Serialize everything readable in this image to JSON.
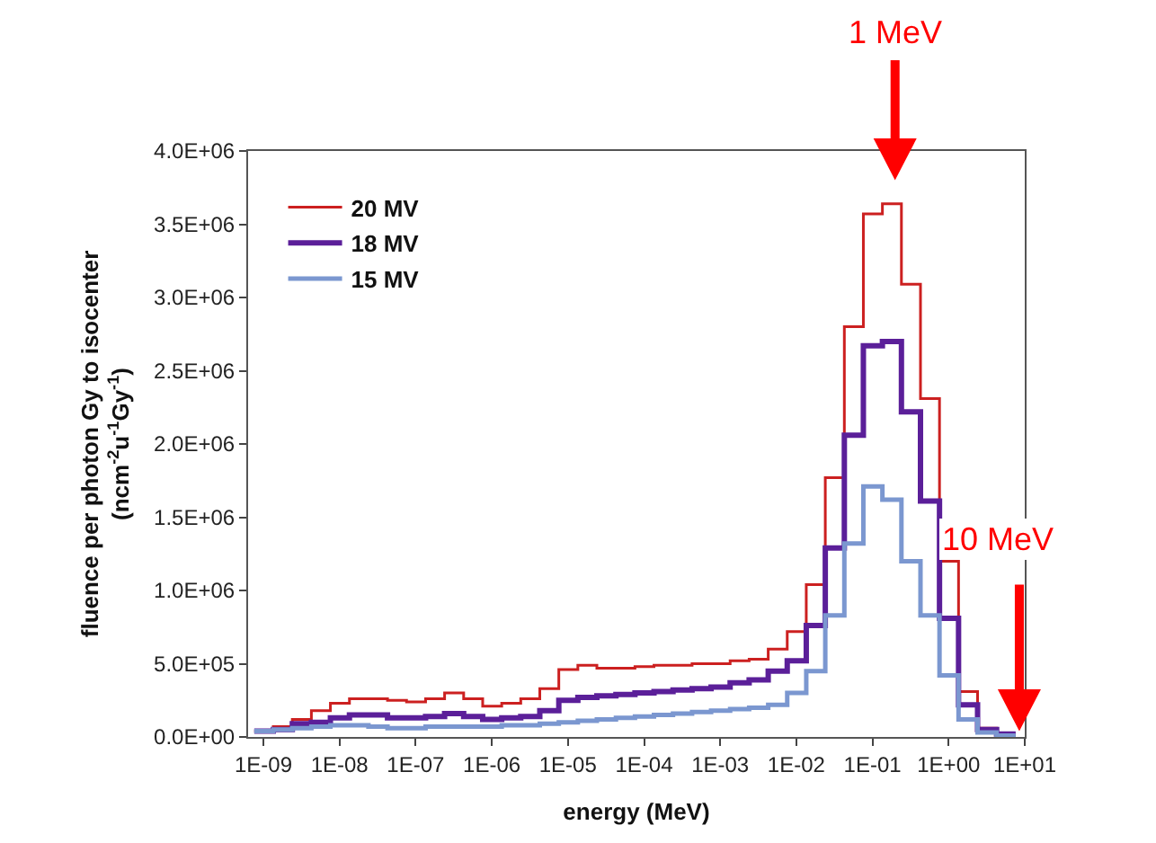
{
  "chart_data": {
    "type": "histogram",
    "xlabel": "energy (MeV)",
    "ylabel": "fluence per photon Gy to isocenter\n(ncm$^{-2}$u$^{-1}$Gy$^{-1}$)",
    "bins": [
      7.59e-10,
      1.35e-09,
      2.4e-09,
      4.27e-09,
      7.59e-09,
      1.35e-08,
      2.4e-08,
      4.27e-08,
      7.59e-08,
      1.35e-07,
      2.4e-07,
      4.27e-07,
      7.59e-07,
      1.35e-06,
      2.4e-06,
      4.27e-06,
      7.59e-06,
      1.35e-05,
      2.4e-05,
      4.27e-05,
      7.59e-05,
      0.000135,
      0.00024,
      0.000427,
      0.000759,
      0.00135,
      0.0024,
      0.00427,
      0.00759,
      0.0135,
      0.024,
      0.0427,
      0.0759,
      0.135,
      0.24,
      0.427,
      0.759,
      1.35,
      2.4,
      4.27,
      7.59
    ],
    "series": [
      {
        "name": "20 MV",
        "color": "#cc2020",
        "values": [
          40000,
          70000,
          120000,
          180000,
          230000,
          260000,
          260000,
          250000,
          240000,
          260000,
          300000,
          260000,
          210000,
          230000,
          260000,
          330000,
          460000,
          490000,
          470000,
          470000,
          480000,
          490000,
          490000,
          500000,
          500000,
          520000,
          530000,
          600000,
          720000,
          1040000,
          1770000,
          2800000,
          3570000,
          3640000,
          3090000,
          2310000,
          1200000,
          310000,
          60000,
          20000
        ]
      },
      {
        "name": "18 MV",
        "color": "#5b1f99",
        "values": [
          40000,
          50000,
          90000,
          100000,
          130000,
          150000,
          150000,
          130000,
          130000,
          140000,
          160000,
          140000,
          120000,
          130000,
          140000,
          180000,
          250000,
          270000,
          280000,
          290000,
          300000,
          310000,
          320000,
          330000,
          340000,
          370000,
          390000,
          450000,
          520000,
          760000,
          1290000,
          2060000,
          2670000,
          2700000,
          2220000,
          1610000,
          810000,
          220000,
          50000,
          20000
        ]
      },
      {
        "name": "15 MV",
        "color": "#7b97d0",
        "values": [
          40000,
          50000,
          60000,
          70000,
          80000,
          80000,
          70000,
          60000,
          60000,
          70000,
          70000,
          70000,
          70000,
          80000,
          80000,
          90000,
          100000,
          110000,
          120000,
          130000,
          140000,
          150000,
          160000,
          170000,
          180000,
          190000,
          200000,
          220000,
          300000,
          450000,
          830000,
          1320000,
          1710000,
          1620000,
          1200000,
          830000,
          420000,
          120000,
          30000,
          10000
        ]
      }
    ],
    "log": "x",
    "xlim": [
      6.3e-10,
      10
    ],
    "xticks": [
      {
        "value": 1e-09,
        "label": "1E-09"
      },
      {
        "value": 1e-08,
        "label": "1E-08"
      },
      {
        "value": 1e-07,
        "label": "1E-07"
      },
      {
        "value": 1e-06,
        "label": "1E-06"
      },
      {
        "value": 1e-05,
        "label": "1E-05"
      },
      {
        "value": 0.0001,
        "label": "1E-04"
      },
      {
        "value": 0.001,
        "label": "1E-03"
      },
      {
        "value": 0.01,
        "label": "1E-02"
      },
      {
        "value": 0.1,
        "label": "1E-01"
      },
      {
        "value": 1,
        "label": "1E+00"
      },
      {
        "value": 10,
        "label": "1E+01"
      }
    ],
    "ylim": [
      0,
      4000000
    ],
    "yticks": [
      {
        "value": 0,
        "label": "0.0E+00"
      },
      {
        "value": 500000,
        "label": "5.0E+05"
      },
      {
        "value": 1000000,
        "label": "1.0E+06"
      },
      {
        "value": 1500000,
        "label": "1.5E+06"
      },
      {
        "value": 2000000,
        "label": "2.0E+06"
      },
      {
        "value": 2500000,
        "label": "2.5E+06"
      },
      {
        "value": 3000000,
        "label": "3.0E+06"
      },
      {
        "value": 3500000,
        "label": "3.5E+06"
      },
      {
        "value": 4000000,
        "label": "4.0E+06"
      }
    ],
    "annotations": [
      "1 MeV",
      "10 MeV"
    ],
    "legend": "top left"
  }
}
